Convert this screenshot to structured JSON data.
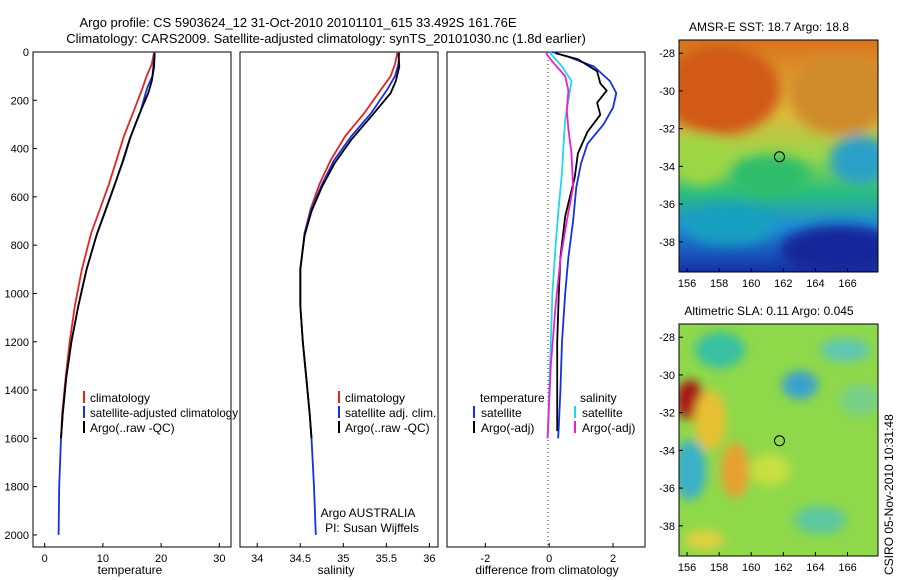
{
  "header": {
    "line1": "Argo profile: CS 5903624_12 31-Oct-2010 20101101_615 33.492S 161.76E",
    "line2": "Climatology: CARS2009. Satellite-adjusted climatology: synTS_20101030.nc (1.8d earlier)"
  },
  "side_stamp": "CSIRO 05-Nov-2010 10:31:48",
  "colors": {
    "red": "#e8231f",
    "blue": "#1430e6",
    "black": "#000000",
    "cyan": "#1fd8e8",
    "magenta": "#e81fd8"
  },
  "chart_data": [
    {
      "type": "line",
      "id": "temperature",
      "xlabel": "temperature",
      "ylabel": "",
      "xlim": [
        -2,
        32
      ],
      "ylim": [
        2050,
        0
      ],
      "xticks": [
        "0",
        "10",
        "20",
        "30"
      ],
      "yticks": [
        "0",
        "200",
        "400",
        "600",
        "800",
        "1000",
        "1200",
        "1400",
        "1600",
        "1800",
        "2000"
      ],
      "series": [
        {
          "name": "climatology",
          "color": "red",
          "x": [
            18.8,
            18.4,
            17.5,
            16.8,
            15.2,
            13.6,
            12.3,
            11.0,
            9.5,
            8.0,
            6.4,
            5.2,
            4.3,
            3.6,
            3.0,
            2.8
          ],
          "y": [
            0,
            50,
            100,
            150,
            250,
            350,
            450,
            550,
            650,
            750,
            900,
            1050,
            1200,
            1350,
            1500,
            1600
          ]
        },
        {
          "name": "satellite-adjusted climatology",
          "color": "blue",
          "x": [
            18.9,
            18.7,
            18.5,
            17.6,
            16.4,
            14.8,
            13.5,
            12.0,
            10.5,
            9.0,
            7.2,
            5.8,
            4.6,
            3.7,
            3.1,
            2.8,
            2.5,
            2.4
          ],
          "y": [
            0,
            50,
            100,
            150,
            250,
            350,
            450,
            550,
            650,
            750,
            900,
            1050,
            1200,
            1350,
            1500,
            1600,
            1800,
            2000
          ]
        },
        {
          "name": "Argo(..raw -QC)",
          "color": "black",
          "x": [
            18.9,
            18.8,
            18.4,
            17.8,
            16.2,
            14.6,
            13.3,
            11.9,
            10.4,
            8.9,
            7.2,
            5.8,
            4.6,
            3.7,
            3.1,
            2.8
          ],
          "y": [
            5,
            60,
            120,
            170,
            260,
            360,
            460,
            560,
            660,
            760,
            900,
            1050,
            1200,
            1350,
            1500,
            1600
          ]
        }
      ],
      "legend": [
        "climatology",
        "satellite-adjusted climatology",
        "Argo(..raw -QC)"
      ]
    },
    {
      "type": "line",
      "id": "salinity",
      "xlabel": "salinity",
      "ylabel": "",
      "xlim": [
        33.8,
        36.1
      ],
      "ylim": [
        2050,
        0
      ],
      "xticks": [
        "34",
        "34.5",
        "35",
        "35.5",
        "36"
      ],
      "series": [
        {
          "name": "climatology",
          "color": "red",
          "x": [
            35.63,
            35.6,
            35.55,
            35.45,
            35.25,
            35.02,
            34.85,
            34.72,
            34.62,
            34.55,
            34.5,
            34.5,
            34.53,
            34.57,
            34.61,
            34.63
          ],
          "y": [
            0,
            50,
            100,
            150,
            250,
            350,
            450,
            550,
            650,
            750,
            900,
            1050,
            1200,
            1350,
            1500,
            1600
          ]
        },
        {
          "name": "satellite adj. clim.",
          "color": "blue",
          "x": [
            35.65,
            35.64,
            35.6,
            35.52,
            35.33,
            35.09,
            34.89,
            34.75,
            34.63,
            34.55,
            34.5,
            34.5,
            34.53,
            34.57,
            34.61,
            34.63,
            34.66,
            34.68
          ],
          "y": [
            0,
            50,
            100,
            150,
            250,
            350,
            450,
            550,
            650,
            750,
            900,
            1050,
            1200,
            1350,
            1500,
            1600,
            1800,
            2000
          ]
        },
        {
          "name": "Argo(..raw -QC)",
          "color": "black",
          "x": [
            35.64,
            35.65,
            35.61,
            35.55,
            35.34,
            35.1,
            34.9,
            34.75,
            34.63,
            34.55,
            34.5,
            34.5,
            34.53,
            34.57,
            34.61,
            34.63
          ],
          "y": [
            5,
            60,
            120,
            170,
            260,
            360,
            460,
            560,
            660,
            760,
            900,
            1050,
            1200,
            1350,
            1500,
            1600
          ]
        }
      ],
      "legend": [
        "climatology",
        "satellite adj. clim.",
        "Argo(..raw -QC)"
      ],
      "annotation": [
        "Argo AUSTRALIA",
        "PI: Susan Wijffels"
      ]
    },
    {
      "type": "line",
      "id": "difference",
      "xlabel": "difference from climatology",
      "ylabel": "",
      "xlim": [
        -3.2,
        3.0
      ],
      "ylim": [
        2050,
        0
      ],
      "xticks": [
        "-2",
        "0",
        "2"
      ],
      "series": [
        {
          "name": "satellite (temperature)",
          "color": "blue",
          "x": [
            0.1,
            0.6,
            1.4,
            1.9,
            2.1,
            2.0,
            1.7,
            1.2,
            1.0,
            0.85,
            0.75,
            0.6,
            0.5,
            0.4,
            0.35,
            0.3,
            0.28
          ],
          "y": [
            0,
            20,
            60,
            120,
            170,
            230,
            300,
            380,
            460,
            560,
            700,
            850,
            1000,
            1200,
            1400,
            1550,
            1600
          ]
        },
        {
          "name": "Argo(-adj) (temperature)",
          "color": "black",
          "x": [
            0.2,
            0.9,
            1.5,
            1.6,
            1.8,
            1.5,
            1.6,
            1.2,
            0.9,
            0.8,
            0.5,
            0.35,
            0.3,
            0.25,
            0.25,
            0.25
          ],
          "y": [
            5,
            30,
            80,
            130,
            160,
            210,
            260,
            330,
            420,
            520,
            680,
            850,
            1000,
            1200,
            1400,
            1570
          ]
        },
        {
          "name": "satellite (salinity)",
          "color": "cyan",
          "x": [
            0.0,
            0.4,
            0.7,
            0.6,
            0.5,
            0.45,
            0.4,
            0.3,
            0.2,
            0.1,
            0.05,
            0.0,
            -0.05
          ],
          "y": [
            0,
            60,
            120,
            200,
            280,
            380,
            500,
            640,
            800,
            1000,
            1200,
            1400,
            1600
          ]
        },
        {
          "name": "Argo(-adj) (salinity)",
          "color": "magenta",
          "x": [
            -0.1,
            0.1,
            0.5,
            0.6,
            0.55,
            0.6,
            0.7,
            0.75,
            0.55,
            0.35,
            0.2,
            0.05,
            -0.05
          ],
          "y": [
            5,
            40,
            100,
            160,
            240,
            320,
            420,
            560,
            700,
            860,
            1050,
            1300,
            1600
          ]
        }
      ],
      "legend_headers": [
        "temperature",
        "salinity"
      ],
      "legend": [
        "satellite",
        "Argo(-adj)",
        "satellite",
        "Argo(-adj)"
      ]
    },
    {
      "type": "heatmap",
      "id": "sst_map",
      "title": "AMSR-E SST: 18.7 Argo: 18.8",
      "xticks": [
        "156",
        "158",
        "160",
        "162",
        "164",
        "166"
      ],
      "yticks": [
        "-28",
        "-30",
        "-32",
        "-34",
        "-36",
        "-38"
      ],
      "xlim": [
        155.5,
        167.9
      ],
      "ylim": [
        -39.6,
        -27.3
      ],
      "marker": {
        "lon": 161.76,
        "lat": -33.49
      }
    },
    {
      "type": "heatmap",
      "id": "sla_map",
      "title": "Altimetric SLA: 0.11 Argo: 0.045",
      "xticks": [
        "156",
        "158",
        "160",
        "162",
        "164",
        "166"
      ],
      "yticks": [
        "-28",
        "-30",
        "-32",
        "-34",
        "-36",
        "-38"
      ],
      "xlim": [
        155.5,
        167.9
      ],
      "ylim": [
        -39.6,
        -27.3
      ],
      "marker": {
        "lon": 161.76,
        "lat": -33.49
      }
    }
  ]
}
